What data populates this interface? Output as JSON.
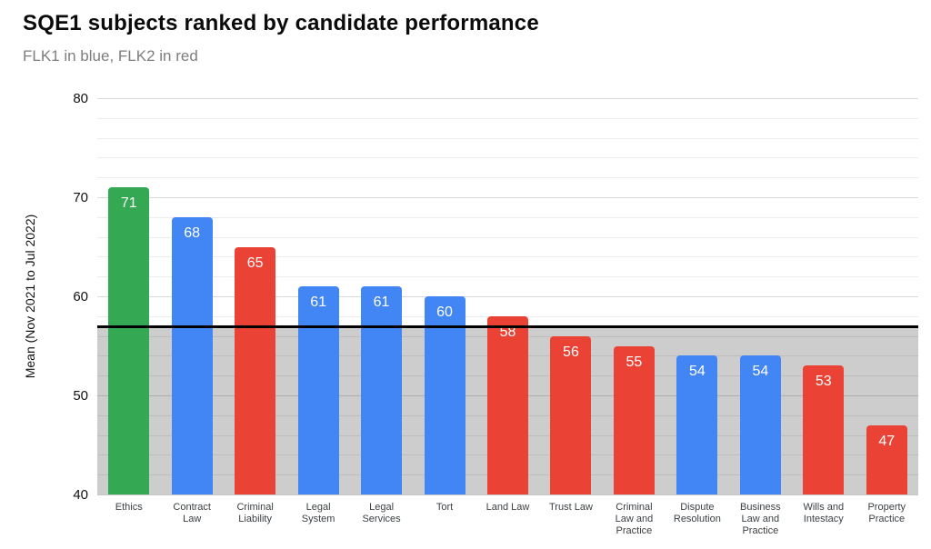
{
  "chart_data": {
    "type": "bar",
    "title": "SQE1 subjects ranked by candidate performance",
    "subtitle": "FLK1 in blue, FLK2 in red",
    "ylabel": "Mean (Nov 2021 to Jul 2022)",
    "xlabel": "",
    "ylim": [
      40,
      80
    ],
    "y_major_ticks": [
      40,
      50,
      60,
      70,
      80
    ],
    "y_minor_gridline_step": 2,
    "grid": true,
    "legend_position": "none",
    "reference_line_y": 57,
    "below_reference_shaded": true,
    "categories": [
      "Ethics",
      "Contract Law",
      "Criminal Liability",
      "Legal System",
      "Legal Services",
      "Tort",
      "Land Law",
      "Trust Law",
      "Criminal Law and Practice",
      "Dispute Resolution",
      "Business Law and Practice",
      "Wills and Intestacy",
      "Property Practice"
    ],
    "values": [
      71,
      68,
      65,
      61,
      61,
      60,
      58,
      56,
      55,
      54,
      54,
      53,
      47
    ],
    "bar_colors": [
      "green",
      "blue",
      "red",
      "blue",
      "blue",
      "blue",
      "red",
      "red",
      "red",
      "blue",
      "blue",
      "red",
      "red"
    ],
    "palette": {
      "green": "#34a853",
      "blue": "#4285f4",
      "red": "#ea4335"
    }
  }
}
